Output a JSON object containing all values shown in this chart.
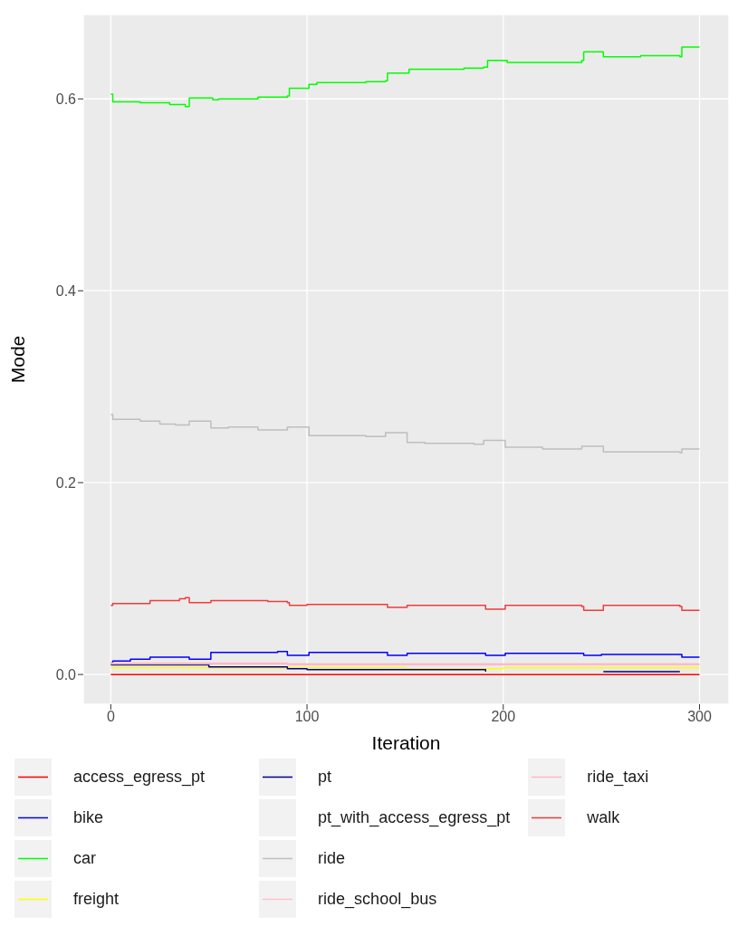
{
  "chart_data": {
    "type": "step",
    "xlabel": "Iteration",
    "ylabel": "Mode",
    "xlim": [
      -14,
      315
    ],
    "xticks": [
      0,
      100,
      200,
      300
    ],
    "ylim": [
      -0.031,
      0.688
    ],
    "yticks": [
      {
        "value": 0,
        "label": "0.0"
      },
      {
        "value": 0.2,
        "label": "0.2"
      },
      {
        "value": 0.4,
        "label": "0.4"
      },
      {
        "value": 0.6,
        "label": "0.6"
      }
    ],
    "grid": true,
    "legend": "bottom",
    "series": [
      {
        "name": "access_egress_pt",
        "color": "#ff0000",
        "x": [
          0,
          300
        ],
        "values": [
          0.0,
          0.0
        ]
      },
      {
        "name": "bike",
        "color": "#0000ff",
        "x": [
          0,
          1,
          10,
          20,
          40,
          51,
          85,
          90,
          101,
          141,
          151,
          191,
          201,
          241,
          250,
          291,
          300
        ],
        "values": [
          0.012,
          0.014,
          0.016,
          0.018,
          0.016,
          0.023,
          0.024,
          0.02,
          0.023,
          0.02,
          0.022,
          0.02,
          0.022,
          0.02,
          0.021,
          0.018,
          0.018
        ]
      },
      {
        "name": "car",
        "color": "#00ff00",
        "x": [
          0,
          1,
          15,
          30,
          38,
          40,
          52,
          55,
          75,
          90,
          91,
          101,
          105,
          130,
          140,
          141,
          152,
          180,
          190,
          192,
          202,
          215,
          240,
          241,
          251,
          270,
          290,
          291,
          300
        ],
        "values": [
          0.605,
          0.597,
          0.596,
          0.594,
          0.592,
          0.601,
          0.599,
          0.6,
          0.602,
          0.603,
          0.611,
          0.615,
          0.617,
          0.618,
          0.619,
          0.627,
          0.631,
          0.632,
          0.633,
          0.64,
          0.638,
          0.638,
          0.64,
          0.649,
          0.644,
          0.645,
          0.644,
          0.654,
          0.654
        ]
      },
      {
        "name": "freight",
        "color": "#ffff00",
        "x": [
          0,
          150,
          200,
          300
        ],
        "values": [
          0.007,
          0.006,
          0.007,
          0.007
        ]
      },
      {
        "name": "pt",
        "color": "#00008b",
        "x": [
          0,
          50,
          90,
          100,
          191,
          241,
          251,
          290
        ],
        "values": [
          0.01,
          0.008,
          0.006,
          0.005,
          0.003,
          null,
          0.003,
          0.003
        ]
      },
      {
        "name": "pt_with_access_egress_pt",
        "color": null
      },
      {
        "name": "ride",
        "color": "#bebebe",
        "x": [
          0,
          1,
          15,
          25,
          33,
          40,
          51,
          60,
          75,
          90,
          101,
          130,
          140,
          151,
          160,
          185,
          190,
          201,
          220,
          240,
          251,
          265,
          290,
          291,
          300
        ],
        "values": [
          0.271,
          0.266,
          0.264,
          0.261,
          0.26,
          0.264,
          0.257,
          0.258,
          0.255,
          0.258,
          0.249,
          0.248,
          0.252,
          0.242,
          0.241,
          0.24,
          0.244,
          0.237,
          0.235,
          0.238,
          0.232,
          0.232,
          0.231,
          0.235,
          0.235
        ]
      },
      {
        "name": "ride_school_bus",
        "color": "#ffc0cb",
        "x": [
          0,
          90,
          300
        ],
        "values": [
          0.012,
          0.01,
          0.01
        ]
      },
      {
        "name": "ride_taxi",
        "color": "#ffb6c1",
        "x": [
          0,
          90,
          300
        ],
        "values": [
          0.011,
          0.011,
          0.011
        ]
      },
      {
        "name": "walk",
        "color": "#f03c3c",
        "x": [
          0,
          1,
          20,
          35,
          38,
          40,
          51,
          80,
          90,
          91,
          100,
          141,
          151,
          191,
          201,
          240,
          241,
          251,
          290,
          291,
          300
        ],
        "values": [
          0.072,
          0.074,
          0.077,
          0.079,
          0.08,
          0.075,
          0.077,
          0.076,
          0.075,
          0.072,
          0.073,
          0.07,
          0.072,
          0.068,
          0.072,
          0.071,
          0.067,
          0.072,
          0.071,
          0.067,
          0.067
        ]
      }
    ]
  }
}
